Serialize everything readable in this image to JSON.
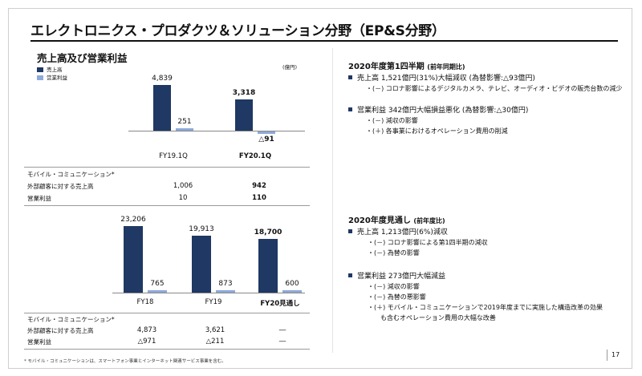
{
  "title": "エレクトロニクス・プロダクツ＆ソリューション分野（EP&S分野）",
  "left": {
    "section_title": "売上高及び営業利益",
    "unit": "(億円)",
    "legend": {
      "sales": "売上高",
      "op_income": "営業利益"
    }
  },
  "colors": {
    "sales": "#1f3864",
    "op_income": "#8ea9db"
  },
  "chart_data": [
    {
      "type": "bar",
      "categories": [
        "FY19.1Q",
        "FY20.1Q"
      ],
      "series": [
        {
          "name": "売上高",
          "values": [
            4839,
            3318
          ]
        },
        {
          "name": "営業利益",
          "values": [
            251,
            -91
          ]
        }
      ],
      "labels": [
        [
          "4,839",
          "251"
        ],
        [
          "3,318",
          "△91"
        ]
      ]
    },
    {
      "type": "bar",
      "categories": [
        "FY18",
        "FY19",
        "FY20見通し"
      ],
      "series": [
        {
          "name": "売上高",
          "values": [
            23206,
            19913,
            18700
          ]
        },
        {
          "name": "営業利益",
          "values": [
            765,
            873,
            600
          ]
        }
      ],
      "labels": [
        [
          "23,206",
          "765"
        ],
        [
          "19,913",
          "873"
        ],
        [
          "18,700",
          "600"
        ]
      ]
    }
  ],
  "table1": {
    "header": "モバイル・コミュニケーション*",
    "rows": [
      {
        "label": "外部顧客に対する売上高",
        "v1": "1,006",
        "v2": "942"
      },
      {
        "label": "営業利益",
        "v1": "10",
        "v2": "110"
      }
    ]
  },
  "table2": {
    "header": "モバイル・コミュニケーション*",
    "rows": [
      {
        "label": "外部顧客に対する売上高",
        "v1": "4,873",
        "v2": "3,621",
        "v3": "―"
      },
      {
        "label": "営業利益",
        "v1": "△971",
        "v2": "△211",
        "v3": "―"
      }
    ]
  },
  "right": {
    "q1": {
      "heading": "2020年度第1四半期",
      "heading_sub": "(前年同期比)",
      "b1": "売上高 1,521億円(31%)大幅減収 (為替影響:△93億円)",
      "b1_s1": "・(－) コロナ影響によるデジタルカメラ、テレビ、オーディオ・ビデオの販売台数の減少",
      "b2": "営業利益 342億円大幅損益悪化 (為替影響:△30億円)",
      "b2_s1": "・(－) 減収の影響",
      "b2_s2": "・(＋) 各事業におけるオペレーション費用の削減"
    },
    "fy": {
      "heading": "2020年度見通し",
      "heading_sub": "(前年度比)",
      "b1": "売上高 1,213億円(6%)減収",
      "b1_s1": "・(－) コロナ影響による第1四半期の減収",
      "b1_s2": "・(－) 為替の影響",
      "b2": "営業利益 273億円大幅減益",
      "b2_s1": "・(－) 減収の影響",
      "b2_s2": "・(－) 為替の悪影響",
      "b2_s3": "・(＋) モバイル・コミュニケーションで2019年度までに実施した構造改革の効果",
      "b2_s3b": "も含むオペレーション費用の大幅な改善"
    }
  },
  "footnote": "* モバイル・コミュニケーションは、スマートフォン事業とインターネット関連サービス事業を含む。",
  "page_number": "17"
}
